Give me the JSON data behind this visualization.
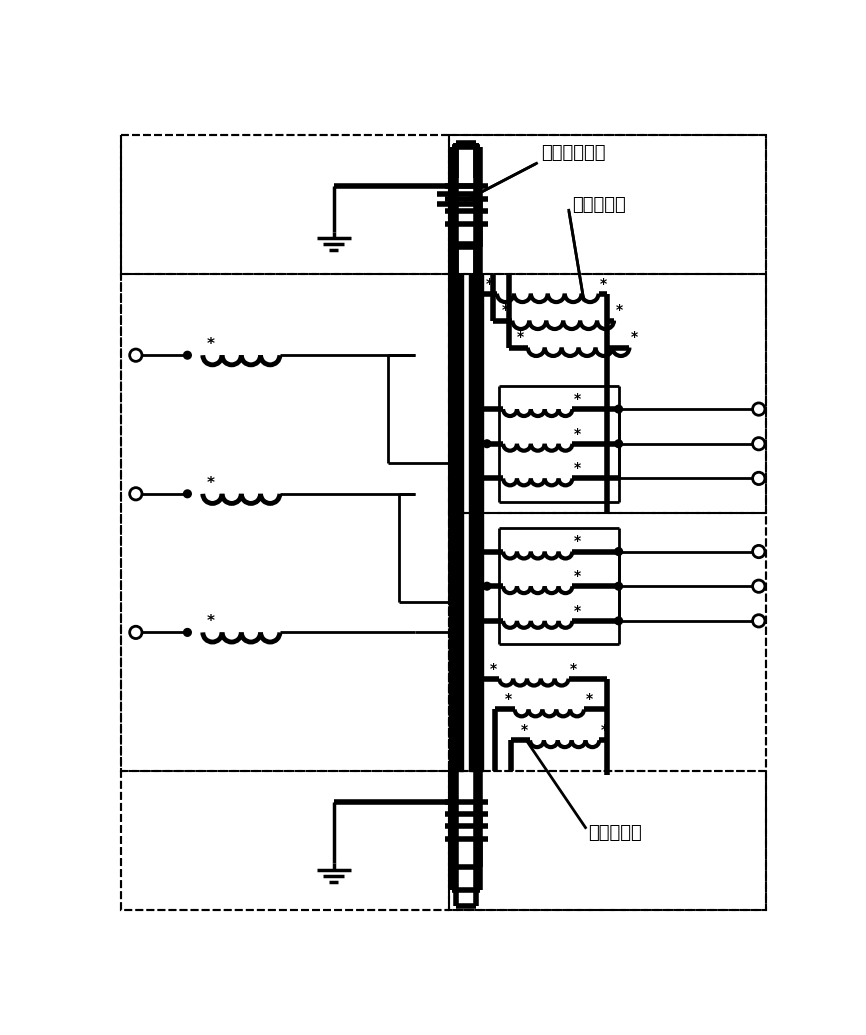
{
  "fig_w": 8.66,
  "fig_h": 10.35,
  "label_cap_top": "外置滤波电容",
  "label_reactor_top": "滤波电抗器",
  "label_reactor_bot": "滤波电抗器"
}
